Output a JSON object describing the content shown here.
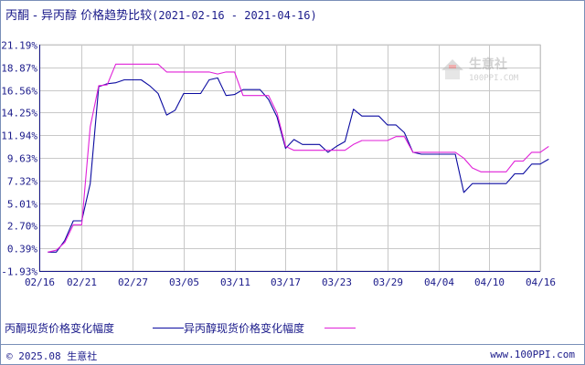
{
  "header": {
    "title": "丙酮 - 异丙醇 价格趋势比较",
    "date_range": "(2021-02-16 - 2021-04-16)"
  },
  "watermark": {
    "name": "生意社",
    "url": "100PPI.COM"
  },
  "footer": {
    "copyright": "© 2025.08 生意社",
    "site": "www.100PPI.com"
  },
  "colors": {
    "series_1": "#0a0aa0",
    "series_2": "#e020d8",
    "grid": "#c8c8c8",
    "axis": "#1a1a8a"
  },
  "chart_data": {
    "type": "line",
    "title": "丙酮 - 异丙醇 价格趋势比较",
    "xlabel": "",
    "ylabel": "",
    "grid": true,
    "legend_position": "bottom",
    "x_ticks": [
      "02/16",
      "02/21",
      "02/27",
      "03/05",
      "03/11",
      "03/17",
      "03/23",
      "03/29",
      "04/04",
      "04/10",
      "04/16"
    ],
    "y_ticks": [
      "-1.93%",
      "0.39%",
      "2.70%",
      "5.01%",
      "7.32%",
      "9.63%",
      "11.94%",
      "14.25%",
      "16.56%",
      "18.87%",
      "21.19%"
    ],
    "ylim": [
      -1.93,
      21.19
    ],
    "xlim": [
      "02/16",
      "04/16"
    ],
    "series": [
      {
        "name": "丙酮现货价格变化幅度",
        "color": "#0a0aa0",
        "points": [
          [
            "02/17",
            0.0
          ],
          [
            "02/18",
            0.0
          ],
          [
            "02/19",
            1.2
          ],
          [
            "02/20",
            3.2
          ],
          [
            "02/21",
            3.2
          ],
          [
            "02/22",
            7.0
          ],
          [
            "02/23",
            16.9
          ],
          [
            "02/24",
            17.2
          ],
          [
            "02/25",
            17.3
          ],
          [
            "02/26",
            17.6
          ],
          [
            "02/27",
            17.6
          ],
          [
            "02/28",
            17.6
          ],
          [
            "03/01",
            17.0
          ],
          [
            "03/02",
            16.2
          ],
          [
            "03/03",
            14.0
          ],
          [
            "03/04",
            14.5
          ],
          [
            "03/05",
            16.2
          ],
          [
            "03/06",
            16.2
          ],
          [
            "03/07",
            16.2
          ],
          [
            "03/08",
            17.6
          ],
          [
            "03/09",
            17.8
          ],
          [
            "03/10",
            16.0
          ],
          [
            "03/11",
            16.1
          ],
          [
            "03/12",
            16.6
          ],
          [
            "03/13",
            16.6
          ],
          [
            "03/14",
            16.6
          ],
          [
            "03/15",
            15.6
          ],
          [
            "03/16",
            13.8
          ],
          [
            "03/17",
            10.6
          ],
          [
            "03/18",
            11.5
          ],
          [
            "03/19",
            11.0
          ],
          [
            "03/20",
            11.0
          ],
          [
            "03/21",
            11.0
          ],
          [
            "03/22",
            10.2
          ],
          [
            "03/23",
            10.8
          ],
          [
            "03/24",
            11.3
          ],
          [
            "03/25",
            14.6
          ],
          [
            "03/26",
            13.9
          ],
          [
            "03/27",
            13.9
          ],
          [
            "03/28",
            13.9
          ],
          [
            "03/29",
            13.0
          ],
          [
            "03/30",
            13.0
          ],
          [
            "03/31",
            12.2
          ],
          [
            "04/01",
            10.2
          ],
          [
            "04/02",
            10.0
          ],
          [
            "04/03",
            10.0
          ],
          [
            "04/04",
            10.0
          ],
          [
            "04/05",
            10.0
          ],
          [
            "04/06",
            10.0
          ],
          [
            "04/07",
            6.1
          ],
          [
            "04/08",
            7.0
          ],
          [
            "04/09",
            7.0
          ],
          [
            "04/10",
            7.0
          ],
          [
            "04/11",
            7.0
          ],
          [
            "04/12",
            7.0
          ],
          [
            "04/13",
            8.0
          ],
          [
            "04/14",
            8.0
          ],
          [
            "04/15",
            9.0
          ],
          [
            "04/16",
            9.0
          ],
          [
            "04/17",
            9.5
          ]
        ]
      },
      {
        "name": "异丙醇现货价格变化幅度",
        "color": "#e020d8",
        "points": [
          [
            "02/17",
            0.0
          ],
          [
            "02/18",
            0.2
          ],
          [
            "02/19",
            1.0
          ],
          [
            "02/20",
            2.8
          ],
          [
            "02/21",
            2.8
          ],
          [
            "02/22",
            12.8
          ],
          [
            "02/23",
            17.0
          ],
          [
            "02/24",
            17.1
          ],
          [
            "02/25",
            19.2
          ],
          [
            "02/26",
            19.2
          ],
          [
            "02/27",
            19.2
          ],
          [
            "02/28",
            19.2
          ],
          [
            "03/01",
            19.2
          ],
          [
            "03/02",
            19.2
          ],
          [
            "03/03",
            18.4
          ],
          [
            "03/04",
            18.4
          ],
          [
            "03/05",
            18.4
          ],
          [
            "03/06",
            18.4
          ],
          [
            "03/07",
            18.4
          ],
          [
            "03/08",
            18.4
          ],
          [
            "03/09",
            18.2
          ],
          [
            "03/10",
            18.4
          ],
          [
            "03/11",
            18.4
          ],
          [
            "03/12",
            16.0
          ],
          [
            "03/13",
            16.0
          ],
          [
            "03/14",
            16.0
          ],
          [
            "03/15",
            16.0
          ],
          [
            "03/16",
            14.2
          ],
          [
            "03/17",
            10.8
          ],
          [
            "03/18",
            10.4
          ],
          [
            "03/19",
            10.4
          ],
          [
            "03/20",
            10.4
          ],
          [
            "03/21",
            10.4
          ],
          [
            "03/22",
            10.4
          ],
          [
            "03/23",
            10.4
          ],
          [
            "03/24",
            10.4
          ],
          [
            "03/25",
            11.0
          ],
          [
            "03/26",
            11.4
          ],
          [
            "03/27",
            11.4
          ],
          [
            "03/28",
            11.4
          ],
          [
            "03/29",
            11.4
          ],
          [
            "03/30",
            11.8
          ],
          [
            "03/31",
            11.8
          ],
          [
            "04/01",
            10.2
          ],
          [
            "04/02",
            10.2
          ],
          [
            "04/03",
            10.2
          ],
          [
            "04/04",
            10.2
          ],
          [
            "04/05",
            10.2
          ],
          [
            "04/06",
            10.2
          ],
          [
            "04/07",
            9.6
          ],
          [
            "04/08",
            8.6
          ],
          [
            "04/09",
            8.2
          ],
          [
            "04/10",
            8.2
          ],
          [
            "04/11",
            8.2
          ],
          [
            "04/12",
            8.2
          ],
          [
            "04/13",
            9.3
          ],
          [
            "04/14",
            9.3
          ],
          [
            "04/15",
            10.2
          ],
          [
            "04/16",
            10.2
          ],
          [
            "04/17",
            10.8
          ]
        ]
      }
    ]
  }
}
